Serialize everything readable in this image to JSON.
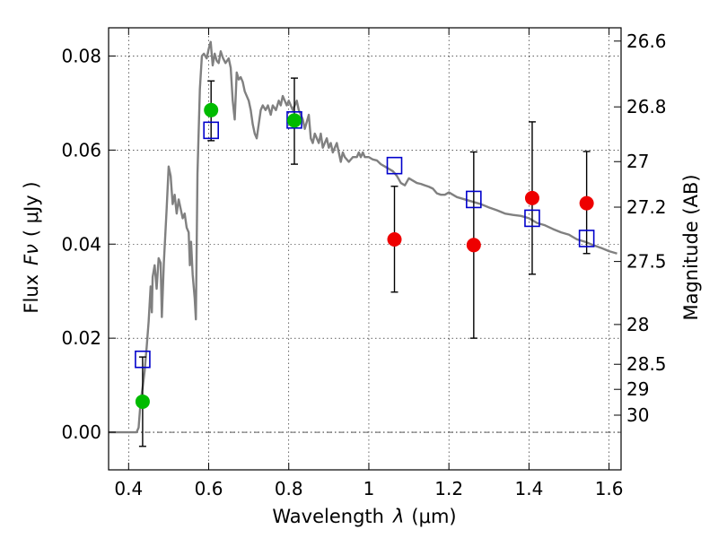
{
  "chart_data": {
    "type": "scatter",
    "xlabel_main": "Wavelength",
    "xlabel_symbol": "λ",
    "xlabel_unit": "(μm)",
    "ylabel_main": "Flux",
    "ylabel_symbol": "Fν",
    "ylabel_unit": "( μJy )",
    "y2label": "Magnitude (AB)",
    "xlim": [
      0.35,
      1.63
    ],
    "ylim": [
      -0.008,
      0.086
    ],
    "grid": true,
    "x_ticks": [
      {
        "value": 0.4,
        "label": "0.4"
      },
      {
        "value": 0.6,
        "label": "0.6"
      },
      {
        "value": 0.8,
        "label": "0.8"
      },
      {
        "value": 1.0,
        "label": "1"
      },
      {
        "value": 1.2,
        "label": "1.2"
      },
      {
        "value": 1.4,
        "label": "1.4"
      },
      {
        "value": 1.6,
        "label": "1.6"
      }
    ],
    "y_ticks": [
      {
        "value": 0.0,
        "label": "0.00"
      },
      {
        "value": 0.02,
        "label": "0.02"
      },
      {
        "value": 0.04,
        "label": "0.04"
      },
      {
        "value": 0.06,
        "label": "0.06"
      },
      {
        "value": 0.08,
        "label": "0.08"
      }
    ],
    "y2_ticks": [
      {
        "value": 26.6,
        "label": "26.6"
      },
      {
        "value": 26.8,
        "label": "26.8"
      },
      {
        "value": 27.0,
        "label": "27"
      },
      {
        "value": 27.2,
        "label": "27.2"
      },
      {
        "value": 27.5,
        "label": "27.5"
      },
      {
        "value": 28.0,
        "label": "28"
      },
      {
        "value": 28.5,
        "label": "28.5"
      },
      {
        "value": 29.0,
        "label": "29"
      },
      {
        "value": 30.0,
        "label": "30"
      }
    ],
    "observed_optical": {
      "color": "#00bb00",
      "points": [
        {
          "x": 0.435,
          "y": 0.0065,
          "yerr_lo": 0.0095,
          "yerr_hi": 0.0095
        },
        {
          "x": 0.606,
          "y": 0.0685,
          "yerr_lo": 0.0065,
          "yerr_hi": 0.0062
        },
        {
          "x": 0.814,
          "y": 0.0663,
          "yerr_lo": 0.0093,
          "yerr_hi": 0.009
        }
      ]
    },
    "observed_nir": {
      "color": "#ee0000",
      "points": [
        {
          "x": 1.064,
          "y": 0.041,
          "yerr_lo": 0.0112,
          "yerr_hi": 0.0113
        },
        {
          "x": 1.262,
          "y": 0.0398,
          "yerr_lo": 0.0198,
          "yerr_hi": 0.0198
        },
        {
          "x": 1.408,
          "y": 0.0498,
          "yerr_lo": 0.0162,
          "yerr_hi": 0.0162
        },
        {
          "x": 1.544,
          "y": 0.0487,
          "yerr_lo": 0.0107,
          "yerr_hi": 0.011
        }
      ]
    },
    "model_photometry": {
      "color": "#0000cc",
      "points": [
        {
          "x": 0.435,
          "y": 0.0155
        },
        {
          "x": 0.606,
          "y": 0.0642
        },
        {
          "x": 0.814,
          "y": 0.0664
        },
        {
          "x": 1.064,
          "y": 0.0567
        },
        {
          "x": 1.262,
          "y": 0.0495
        },
        {
          "x": 1.408,
          "y": 0.0455
        },
        {
          "x": 1.544,
          "y": 0.0412
        }
      ]
    },
    "model_spectrum": {
      "color": "#808080",
      "points": [
        [
          0.35,
          0.0
        ],
        [
          0.42,
          0.0
        ],
        [
          0.425,
          0.001
        ],
        [
          0.43,
          0.0065
        ],
        [
          0.435,
          0.0095
        ],
        [
          0.44,
          0.013
        ],
        [
          0.445,
          0.018
        ],
        [
          0.45,
          0.0235
        ],
        [
          0.455,
          0.031
        ],
        [
          0.458,
          0.0255
        ],
        [
          0.46,
          0.033
        ],
        [
          0.465,
          0.0355
        ],
        [
          0.47,
          0.0305
        ],
        [
          0.475,
          0.037
        ],
        [
          0.48,
          0.036
        ],
        [
          0.483,
          0.0245
        ],
        [
          0.488,
          0.036
        ],
        [
          0.495,
          0.0475
        ],
        [
          0.5,
          0.0565
        ],
        [
          0.505,
          0.0545
        ],
        [
          0.51,
          0.0485
        ],
        [
          0.515,
          0.0505
        ],
        [
          0.52,
          0.0465
        ],
        [
          0.525,
          0.0495
        ],
        [
          0.53,
          0.0475
        ],
        [
          0.535,
          0.0455
        ],
        [
          0.54,
          0.0465
        ],
        [
          0.545,
          0.0435
        ],
        [
          0.55,
          0.0425
        ],
        [
          0.553,
          0.0355
        ],
        [
          0.556,
          0.0405
        ],
        [
          0.56,
          0.0335
        ],
        [
          0.565,
          0.0285
        ],
        [
          0.568,
          0.024
        ],
        [
          0.572,
          0.055
        ],
        [
          0.578,
          0.073
        ],
        [
          0.583,
          0.08
        ],
        [
          0.588,
          0.0805
        ],
        [
          0.595,
          0.0795
        ],
        [
          0.6,
          0.0815
        ],
        [
          0.605,
          0.083
        ],
        [
          0.61,
          0.078
        ],
        [
          0.615,
          0.0805
        ],
        [
          0.62,
          0.079
        ],
        [
          0.625,
          0.0785
        ],
        [
          0.63,
          0.081
        ],
        [
          0.636,
          0.0795
        ],
        [
          0.642,
          0.0785
        ],
        [
          0.65,
          0.0795
        ],
        [
          0.655,
          0.0775
        ],
        [
          0.66,
          0.0705
        ],
        [
          0.665,
          0.0665
        ],
        [
          0.67,
          0.0765
        ],
        [
          0.675,
          0.075
        ],
        [
          0.68,
          0.0755
        ],
        [
          0.685,
          0.0745
        ],
        [
          0.69,
          0.0725
        ],
        [
          0.695,
          0.0715
        ],
        [
          0.7,
          0.0705
        ],
        [
          0.705,
          0.0685
        ],
        [
          0.71,
          0.0655
        ],
        [
          0.715,
          0.0635
        ],
        [
          0.72,
          0.0625
        ],
        [
          0.73,
          0.0685
        ],
        [
          0.735,
          0.0695
        ],
        [
          0.742,
          0.0685
        ],
        [
          0.748,
          0.0695
        ],
        [
          0.755,
          0.0675
        ],
        [
          0.76,
          0.0695
        ],
        [
          0.768,
          0.0685
        ],
        [
          0.775,
          0.0705
        ],
        [
          0.78,
          0.0695
        ],
        [
          0.785,
          0.0715
        ],
        [
          0.79,
          0.0705
        ],
        [
          0.795,
          0.0695
        ],
        [
          0.8,
          0.0705
        ],
        [
          0.81,
          0.0685
        ],
        [
          0.815,
          0.0695
        ],
        [
          0.82,
          0.0705
        ],
        [
          0.825,
          0.0685
        ],
        [
          0.83,
          0.0675
        ],
        [
          0.835,
          0.0665
        ],
        [
          0.84,
          0.0645
        ],
        [
          0.85,
          0.0675
        ],
        [
          0.855,
          0.0625
        ],
        [
          0.86,
          0.0615
        ],
        [
          0.865,
          0.0635
        ],
        [
          0.87,
          0.0625
        ],
        [
          0.875,
          0.0615
        ],
        [
          0.88,
          0.0635
        ],
        [
          0.885,
          0.0605
        ],
        [
          0.89,
          0.0615
        ],
        [
          0.895,
          0.0625
        ],
        [
          0.9,
          0.0605
        ],
        [
          0.905,
          0.0615
        ],
        [
          0.91,
          0.0595
        ],
        [
          0.92,
          0.0615
        ],
        [
          0.925,
          0.0595
        ],
        [
          0.93,
          0.0575
        ],
        [
          0.935,
          0.0595
        ],
        [
          0.94,
          0.0585
        ],
        [
          0.95,
          0.0575
        ],
        [
          0.96,
          0.0585
        ],
        [
          0.97,
          0.0585
        ],
        [
          0.975,
          0.0595
        ],
        [
          0.98,
          0.0585
        ],
        [
          0.985,
          0.0595
        ],
        [
          0.99,
          0.0585
        ],
        [
          1.0,
          0.0585
        ],
        [
          1.01,
          0.058
        ],
        [
          1.02,
          0.0578
        ],
        [
          1.03,
          0.057
        ],
        [
          1.04,
          0.0565
        ],
        [
          1.05,
          0.056
        ],
        [
          1.06,
          0.0555
        ],
        [
          1.07,
          0.0545
        ],
        [
          1.08,
          0.053
        ],
        [
          1.09,
          0.0525
        ],
        [
          1.1,
          0.054
        ],
        [
          1.11,
          0.0535
        ],
        [
          1.12,
          0.053
        ],
        [
          1.13,
          0.0528
        ],
        [
          1.14,
          0.0525
        ],
        [
          1.15,
          0.0522
        ],
        [
          1.16,
          0.0518
        ],
        [
          1.17,
          0.0508
        ],
        [
          1.18,
          0.0505
        ],
        [
          1.19,
          0.0505
        ],
        [
          1.2,
          0.051
        ],
        [
          1.21,
          0.0505
        ],
        [
          1.22,
          0.05
        ],
        [
          1.24,
          0.0495
        ],
        [
          1.26,
          0.049
        ],
        [
          1.28,
          0.0485
        ],
        [
          1.3,
          0.0478
        ],
        [
          1.32,
          0.0472
        ],
        [
          1.34,
          0.0465
        ],
        [
          1.36,
          0.0462
        ],
        [
          1.38,
          0.046
        ],
        [
          1.4,
          0.0455
        ],
        [
          1.42,
          0.0445
        ],
        [
          1.44,
          0.044
        ],
        [
          1.46,
          0.0432
        ],
        [
          1.48,
          0.0425
        ],
        [
          1.5,
          0.042
        ],
        [
          1.52,
          0.041
        ],
        [
          1.54,
          0.0405
        ],
        [
          1.56,
          0.0398
        ],
        [
          1.58,
          0.0392
        ],
        [
          1.6,
          0.0385
        ],
        [
          1.62,
          0.038
        ]
      ]
    }
  }
}
